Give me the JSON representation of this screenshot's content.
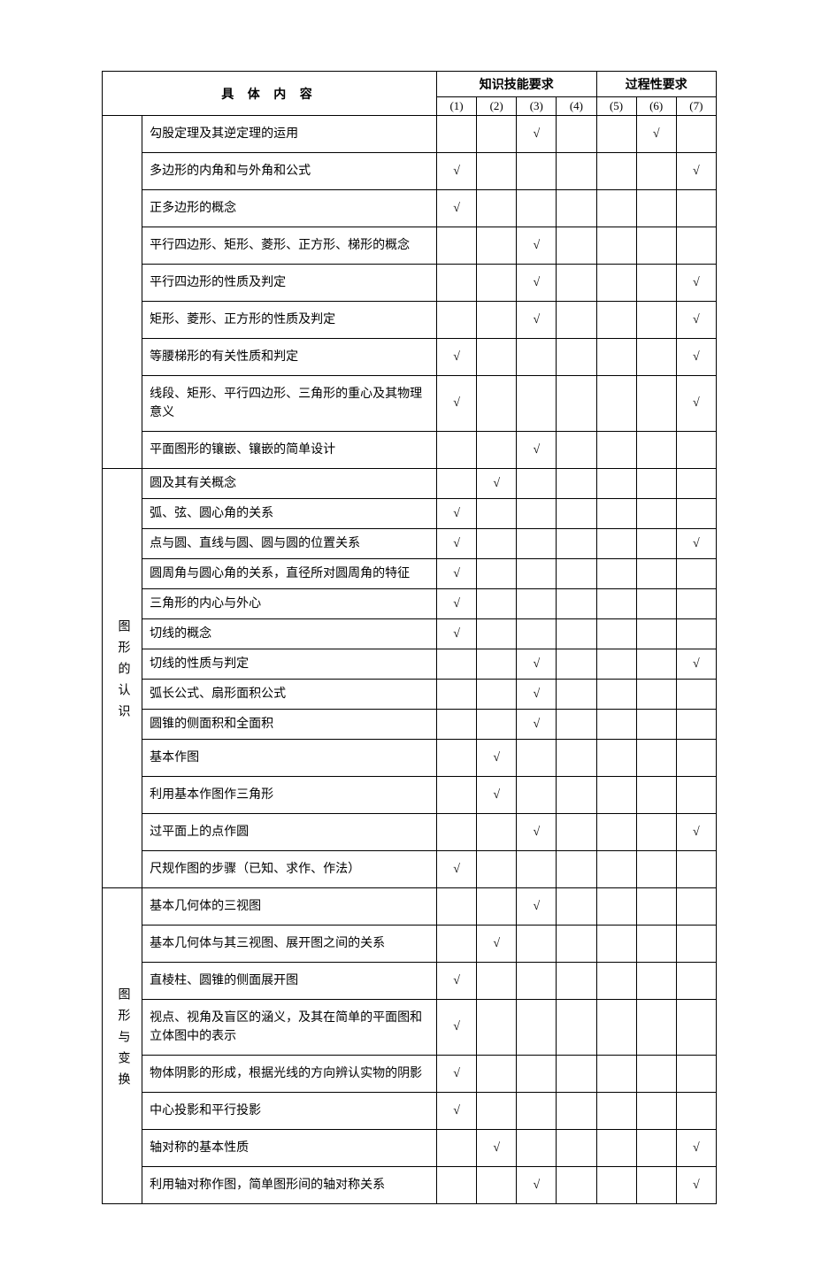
{
  "check_glyph": "√",
  "header": {
    "main": "具  体  内  容",
    "skill": "知识技能要求",
    "process": "过程性要求",
    "cols": [
      "(1)",
      "(2)",
      "(3)",
      "(4)",
      "(5)",
      "(6)",
      "(7)"
    ]
  },
  "categories": {
    "quads": "",
    "circles": "图形的认识",
    "views": "图形与变换"
  },
  "rows": [
    {
      "sec": "quads",
      "text": "勾股定理及其逆定理的运用",
      "c": [
        0,
        0,
        1,
        0,
        0,
        1,
        0
      ],
      "tall": true
    },
    {
      "sec": "quads",
      "text": "多边形的内角和与外角和公式",
      "c": [
        1,
        0,
        0,
        0,
        0,
        0,
        1
      ],
      "tall": true
    },
    {
      "sec": "quads",
      "text": "正多边形的概念",
      "c": [
        1,
        0,
        0,
        0,
        0,
        0,
        0
      ],
      "tall": true
    },
    {
      "sec": "quads",
      "text": "平行四边形、矩形、菱形、正方形、梯形的概念",
      "c": [
        0,
        0,
        1,
        0,
        0,
        0,
        0
      ],
      "tall": true
    },
    {
      "sec": "quads",
      "text": "平行四边形的性质及判定",
      "c": [
        0,
        0,
        1,
        0,
        0,
        0,
        1
      ],
      "tall": true
    },
    {
      "sec": "quads",
      "text": "矩形、菱形、正方形的性质及判定",
      "c": [
        0,
        0,
        1,
        0,
        0,
        0,
        1
      ],
      "tall": true
    },
    {
      "sec": "quads",
      "text": "等腰梯形的有关性质和判定",
      "c": [
        1,
        0,
        0,
        0,
        0,
        0,
        1
      ],
      "tall": true
    },
    {
      "sec": "quads",
      "text": "线段、矩形、平行四边形、三角形的重心及其物理意义",
      "c": [
        1,
        0,
        0,
        0,
        0,
        0,
        1
      ],
      "tall": true
    },
    {
      "sec": "quads",
      "text": "平面图形的镶嵌、镶嵌的简单设计",
      "c": [
        0,
        0,
        1,
        0,
        0,
        0,
        0
      ],
      "tall": true
    },
    {
      "sec": "circles",
      "text": "圆及其有关概念",
      "c": [
        0,
        1,
        0,
        0,
        0,
        0,
        0
      ]
    },
    {
      "sec": "circles",
      "text": "弧、弦、圆心角的关系",
      "c": [
        1,
        0,
        0,
        0,
        0,
        0,
        0
      ]
    },
    {
      "sec": "circles",
      "text": "点与圆、直线与圆、圆与圆的位置关系",
      "c": [
        1,
        0,
        0,
        0,
        0,
        0,
        1
      ]
    },
    {
      "sec": "circles",
      "text": "圆周角与圆心角的关系，直径所对圆周角的特征",
      "c": [
        1,
        0,
        0,
        0,
        0,
        0,
        0
      ]
    },
    {
      "sec": "circles",
      "text": "三角形的内心与外心",
      "c": [
        1,
        0,
        0,
        0,
        0,
        0,
        0
      ]
    },
    {
      "sec": "circles",
      "text": "切线的概念",
      "c": [
        1,
        0,
        0,
        0,
        0,
        0,
        0
      ]
    },
    {
      "sec": "circles",
      "text": "切线的性质与判定",
      "c": [
        0,
        0,
        1,
        0,
        0,
        0,
        1
      ]
    },
    {
      "sec": "circles",
      "text": "弧长公式、扇形面积公式",
      "c": [
        0,
        0,
        1,
        0,
        0,
        0,
        0
      ]
    },
    {
      "sec": "circles",
      "text": "圆锥的侧面积和全面积",
      "c": [
        0,
        0,
        1,
        0,
        0,
        0,
        0
      ]
    },
    {
      "sec": "circles",
      "text": "基本作图",
      "c": [
        0,
        1,
        0,
        0,
        0,
        0,
        0
      ],
      "tall": true
    },
    {
      "sec": "circles",
      "text": "利用基本作图作三角形",
      "c": [
        0,
        1,
        0,
        0,
        0,
        0,
        0
      ],
      "tall": true
    },
    {
      "sec": "circles",
      "text": "过平面上的点作圆",
      "c": [
        0,
        0,
        1,
        0,
        0,
        0,
        1
      ],
      "tall": true
    },
    {
      "sec": "circles",
      "text": "尺规作图的步骤（已知、求作、作法）",
      "c": [
        1,
        0,
        0,
        0,
        0,
        0,
        0
      ],
      "tall": true
    },
    {
      "sec": "views",
      "text": "基本几何体的三视图",
      "c": [
        0,
        0,
        1,
        0,
        0,
        0,
        0
      ],
      "tall": true
    },
    {
      "sec": "views",
      "text": "基本几何体与其三视图、展开图之间的关系",
      "c": [
        0,
        1,
        0,
        0,
        0,
        0,
        0
      ],
      "tall": true
    },
    {
      "sec": "views",
      "text": "直棱柱、圆锥的侧面展开图",
      "c": [
        1,
        0,
        0,
        0,
        0,
        0,
        0
      ],
      "tall": true
    },
    {
      "sec": "views",
      "text": "视点、视角及盲区的涵义，及其在简单的平面图和立体图中的表示",
      "c": [
        1,
        0,
        0,
        0,
        0,
        0,
        0
      ],
      "tall": true
    },
    {
      "sec": "views",
      "text": "物体阴影的形成，根据光线的方向辨认实物的阴影",
      "c": [
        1,
        0,
        0,
        0,
        0,
        0,
        0
      ],
      "tall": true
    },
    {
      "sec": "views",
      "text": "中心投影和平行投影",
      "c": [
        1,
        0,
        0,
        0,
        0,
        0,
        0
      ],
      "tall": true
    },
    {
      "sec": "views",
      "text": "轴对称的基本性质",
      "c": [
        0,
        1,
        0,
        0,
        0,
        0,
        1
      ],
      "tall": true
    },
    {
      "sec": "views",
      "text": "利用轴对称作图，简单图形间的轴对称关系",
      "c": [
        0,
        0,
        1,
        0,
        0,
        0,
        1
      ],
      "tall": true
    }
  ],
  "style": {
    "page_bg": "#ffffff",
    "border_color": "#000000",
    "text_color": "#000000",
    "font_size_body": 14,
    "font_size_header": 14
  }
}
